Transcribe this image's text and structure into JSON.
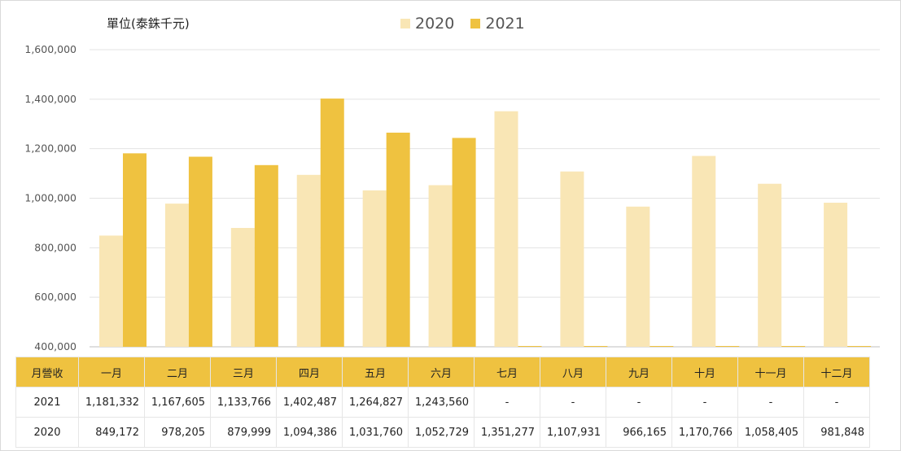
{
  "unit_label": "單位(泰銖千元)",
  "legend": [
    {
      "name": "2020",
      "color": "#f9e6b5"
    },
    {
      "name": "2021",
      "color": "#efc240"
    }
  ],
  "table": {
    "header_label": "月營收",
    "rows": [
      {
        "label": "2021",
        "cells": [
          "1,181,332",
          "1,167,605",
          "1,133,766",
          "1,402,487",
          "1,264,827",
          "1,243,560",
          "-",
          "-",
          "-",
          "-",
          "-",
          "-"
        ]
      },
      {
        "label": "2020",
        "cells": [
          "849,172",
          "978,205",
          "879,999",
          "1,094,386",
          "1,031,760",
          "1,052,729",
          "1,351,277",
          "1,107,931",
          "966,165",
          "1,170,766",
          "1,058,405",
          "981,848"
        ]
      }
    ]
  },
  "chart_data": {
    "type": "bar",
    "title": "",
    "xlabel": "",
    "ylabel": "單位(泰銖千元)",
    "categories": [
      "一月",
      "二月",
      "三月",
      "四月",
      "五月",
      "六月",
      "七月",
      "八月",
      "九月",
      "十月",
      "十一月",
      "十二月"
    ],
    "series": [
      {
        "name": "2020",
        "color": "#f9e6b5",
        "values": [
          849172,
          978205,
          879999,
          1094386,
          1031760,
          1052729,
          1351277,
          1107931,
          966165,
          1170766,
          1058405,
          981848
        ]
      },
      {
        "name": "2021",
        "color": "#efc240",
        "values": [
          1181332,
          1167605,
          1133766,
          1402487,
          1264827,
          1243560,
          null,
          null,
          null,
          null,
          null,
          null
        ]
      }
    ],
    "ylim": [
      400000,
      1600000
    ],
    "yticks": [
      "400,000",
      "600,000",
      "800,000",
      "1,000,000",
      "1,200,000",
      "1,400,000",
      "1,600,000"
    ],
    "grid": true,
    "legend_position": "top-center"
  }
}
